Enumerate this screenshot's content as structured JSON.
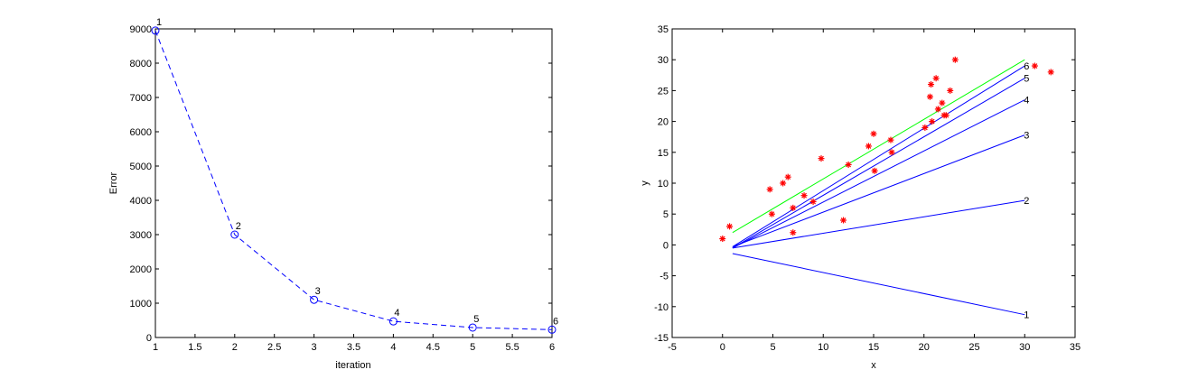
{
  "chart_data": [
    {
      "type": "line",
      "title": "",
      "xlabel": "iteration",
      "ylabel": "Error",
      "xlim": [
        1,
        6
      ],
      "ylim": [
        0,
        9000
      ],
      "xticks": [
        "1",
        "1.5",
        "2",
        "2.5",
        "3",
        "3.5",
        "4",
        "4.5",
        "5",
        "5.5",
        "6"
      ],
      "yticks": [
        "0",
        "1000",
        "2000",
        "3000",
        "4000",
        "5000",
        "6000",
        "7000",
        "8000",
        "9000"
      ],
      "grid": false,
      "series": [
        {
          "x": [
            1,
            2,
            3,
            4,
            5,
            6
          ],
          "y": [
            8950,
            3000,
            1100,
            470,
            290,
            230
          ],
          "labels": [
            "1",
            "2",
            "3",
            "4",
            "5",
            "6"
          ],
          "color": "#0000ff",
          "line_style": "dashed",
          "marker": "circle"
        }
      ]
    },
    {
      "type": "scatter",
      "title": "",
      "xlabel": "x",
      "ylabel": "y",
      "xlim": [
        -5,
        35
      ],
      "ylim": [
        -15,
        35
      ],
      "xticks": [
        "-5",
        "0",
        "5",
        "10",
        "15",
        "20",
        "25",
        "30",
        "35"
      ],
      "yticks": [
        "-15",
        "-10",
        "-5",
        "0",
        "5",
        "10",
        "15",
        "20",
        "25",
        "30",
        "35"
      ],
      "grid": false,
      "points": {
        "color": "#ff0000",
        "marker": "asterisk",
        "x": [
          0,
          0.7,
          4.7,
          4.9,
          6,
          6.5,
          7,
          7,
          8.1,
          9,
          9.8,
          12,
          12.5,
          14.5,
          15,
          15.1,
          16.7,
          16.8,
          20.1,
          20.6,
          20.7,
          20.8,
          21.2,
          21.4,
          21.8,
          22,
          22.2,
          22.6,
          23.1,
          31,
          32.6
        ],
        "y": [
          1,
          3,
          9,
          5,
          10,
          11,
          6,
          2,
          8,
          7,
          14,
          4,
          13,
          16,
          18,
          12,
          17,
          15,
          19,
          24,
          26,
          20,
          27,
          22,
          23,
          21,
          21,
          25,
          30,
          29,
          28
        ]
      },
      "lines": [
        {
          "label": "1",
          "color": "#0000ff",
          "x": [
            1,
            30
          ],
          "y": [
            -1.4,
            -11.3
          ]
        },
        {
          "label": "2",
          "color": "#0000ff",
          "x": [
            1,
            30
          ],
          "y": [
            -0.5,
            7.2
          ]
        },
        {
          "label": "3",
          "color": "#0000ff",
          "x": [
            1,
            30
          ],
          "y": [
            -0.3,
            17.8
          ]
        },
        {
          "label": "4",
          "color": "#0000ff",
          "x": [
            1,
            30
          ],
          "y": [
            -0.5,
            23.5
          ]
        },
        {
          "label": "5",
          "color": "#0000ff",
          "x": [
            1,
            30
          ],
          "y": [
            -0.5,
            27
          ]
        },
        {
          "label": "6",
          "color": "#0000ff",
          "x": [
            1,
            30
          ],
          "y": [
            -0.3,
            29
          ]
        },
        {
          "label": "",
          "color": "#00ff00",
          "x": [
            1,
            30
          ],
          "y": [
            2,
            30
          ]
        }
      ]
    }
  ]
}
